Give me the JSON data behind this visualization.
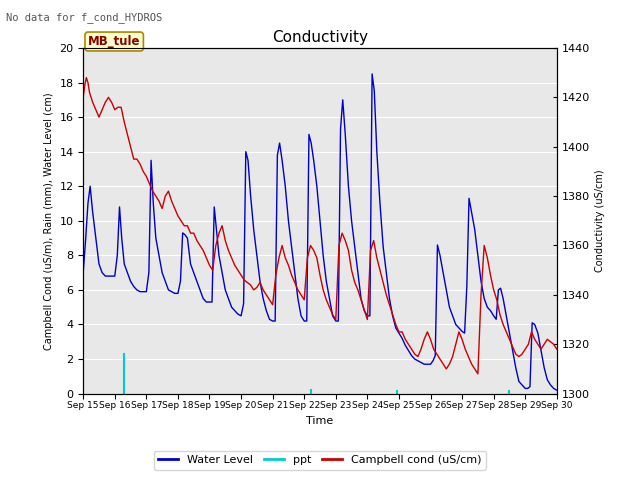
{
  "title": "Conductivity",
  "no_data_text": "No data for f_cond_HYDROS",
  "station_label": "MB_tule",
  "xlabel": "Time",
  "ylabel_left": "Campbell Cond (uS/m), Rain (mm), Water Level (cm)",
  "ylabel_right": "Conductivity (uS/cm)",
  "ylim_left": [
    0,
    20
  ],
  "ylim_right": [
    1300,
    1440
  ],
  "background_color": "#e8e8e8",
  "fig_color": "#ffffff",
  "x_start": 15,
  "x_end": 30,
  "x_ticks": [
    15,
    16,
    17,
    18,
    19,
    20,
    21,
    22,
    23,
    24,
    25,
    26,
    27,
    28,
    29,
    30
  ],
  "x_tick_labels": [
    "Sep 15",
    "Sep 16",
    "Sep 17",
    "Sep 18",
    "Sep 19",
    "Sep 20",
    "Sep 21",
    "Sep 22",
    "Sep 23",
    "Sep 24",
    "Sep 25",
    "Sep 26",
    "Sep 27",
    "Sep 28",
    "Sep 29",
    "Sep 30"
  ],
  "water_level_color": "#0000cc",
  "ppt_color": "#00cccc",
  "campbell_color": "#cc0000",
  "water_level": {
    "x": [
      15.0,
      15.08,
      15.15,
      15.22,
      15.3,
      15.4,
      15.5,
      15.6,
      15.7,
      15.8,
      15.9,
      16.0,
      16.08,
      16.15,
      16.22,
      16.3,
      16.4,
      16.5,
      16.6,
      16.7,
      16.8,
      16.9,
      17.0,
      17.08,
      17.15,
      17.22,
      17.3,
      17.4,
      17.5,
      17.6,
      17.7,
      17.8,
      17.9,
      18.0,
      18.08,
      18.15,
      18.22,
      18.3,
      18.4,
      18.5,
      18.6,
      18.7,
      18.8,
      18.9,
      19.0,
      19.08,
      19.15,
      19.22,
      19.3,
      19.4,
      19.5,
      19.6,
      19.7,
      19.8,
      19.9,
      20.0,
      20.08,
      20.15,
      20.22,
      20.3,
      20.4,
      20.5,
      20.6,
      20.7,
      20.8,
      20.9,
      21.0,
      21.08,
      21.15,
      21.22,
      21.3,
      21.4,
      21.5,
      21.6,
      21.7,
      21.8,
      21.9,
      22.0,
      22.08,
      22.15,
      22.22,
      22.3,
      22.4,
      22.5,
      22.6,
      22.7,
      22.8,
      22.9,
      23.0,
      23.08,
      23.15,
      23.22,
      23.3,
      23.4,
      23.5,
      23.6,
      23.7,
      23.8,
      23.9,
      24.0,
      24.08,
      24.15,
      24.22,
      24.3,
      24.4,
      24.5,
      24.6,
      24.7,
      24.8,
      24.9,
      25.0,
      25.1,
      25.2,
      25.3,
      25.4,
      25.5,
      25.6,
      25.7,
      25.8,
      25.9,
      26.0,
      26.08,
      26.15,
      26.22,
      26.3,
      26.4,
      26.5,
      26.6,
      26.7,
      26.8,
      26.9,
      27.0,
      27.08,
      27.15,
      27.22,
      27.3,
      27.4,
      27.5,
      27.6,
      27.7,
      27.8,
      27.9,
      28.0,
      28.08,
      28.15,
      28.22,
      28.3,
      28.4,
      28.5,
      28.6,
      28.7,
      28.8,
      28.9,
      29.0,
      29.08,
      29.15,
      29.22,
      29.3,
      29.4,
      29.5,
      29.6,
      29.7,
      29.8,
      29.9,
      30.0
    ],
    "y": [
      7.0,
      9.0,
      11.0,
      12.0,
      10.5,
      9.0,
      7.5,
      7.0,
      6.8,
      6.8,
      6.8,
      6.8,
      8.0,
      10.8,
      9.0,
      7.5,
      7.0,
      6.5,
      6.2,
      6.0,
      5.9,
      5.9,
      5.9,
      7.0,
      13.5,
      11.0,
      9.0,
      8.0,
      7.0,
      6.5,
      6.0,
      5.9,
      5.8,
      5.8,
      6.5,
      9.3,
      9.2,
      9.0,
      7.5,
      7.0,
      6.5,
      6.0,
      5.5,
      5.3,
      5.3,
      5.3,
      10.8,
      9.5,
      8.0,
      7.0,
      6.0,
      5.5,
      5.0,
      4.8,
      4.6,
      4.5,
      5.2,
      14.0,
      13.5,
      11.5,
      9.5,
      8.0,
      6.5,
      5.5,
      4.8,
      4.3,
      4.2,
      4.2,
      13.8,
      14.5,
      13.5,
      12.0,
      10.0,
      8.5,
      7.0,
      5.5,
      4.5,
      4.2,
      4.2,
      15.0,
      14.5,
      13.5,
      12.0,
      10.0,
      8.0,
      6.5,
      5.5,
      4.5,
      4.2,
      4.2,
      15.3,
      17.0,
      15.0,
      12.0,
      10.0,
      8.5,
      7.0,
      5.5,
      4.8,
      4.5,
      4.5,
      18.5,
      17.5,
      14.0,
      11.0,
      8.5,
      7.0,
      5.5,
      4.5,
      3.8,
      3.5,
      3.2,
      2.8,
      2.5,
      2.2,
      2.0,
      1.9,
      1.8,
      1.7,
      1.7,
      1.7,
      1.9,
      2.2,
      8.6,
      8.0,
      7.0,
      6.0,
      5.0,
      4.5,
      4.0,
      3.8,
      3.6,
      3.5,
      6.2,
      11.3,
      10.5,
      9.5,
      8.0,
      6.5,
      5.5,
      5.0,
      4.8,
      4.5,
      4.3,
      6.0,
      6.1,
      5.5,
      4.5,
      3.5,
      2.5,
      1.5,
      0.7,
      0.5,
      0.3,
      0.3,
      0.4,
      4.1,
      4.0,
      3.5,
      2.5,
      1.5,
      0.8,
      0.5,
      0.3,
      0.2
    ]
  },
  "ppt": {
    "x": [
      16.3,
      22.2,
      24.95,
      28.5
    ],
    "y": [
      2.3,
      0.2,
      0.15,
      0.15
    ]
  },
  "campbell": {
    "x": [
      15.0,
      15.05,
      15.1,
      15.15,
      15.2,
      15.3,
      15.4,
      15.5,
      15.6,
      15.7,
      15.8,
      15.9,
      16.0,
      16.1,
      16.2,
      16.3,
      16.4,
      16.5,
      16.6,
      16.7,
      16.8,
      16.9,
      17.0,
      17.1,
      17.2,
      17.3,
      17.4,
      17.5,
      17.6,
      17.7,
      17.8,
      17.9,
      18.0,
      18.1,
      18.2,
      18.3,
      18.4,
      18.5,
      18.6,
      18.7,
      18.8,
      18.9,
      19.0,
      19.1,
      19.2,
      19.3,
      19.4,
      19.5,
      19.6,
      19.7,
      19.8,
      19.9,
      20.0,
      20.1,
      20.2,
      20.3,
      20.4,
      20.5,
      20.6,
      20.7,
      20.8,
      20.9,
      21.0,
      21.1,
      21.2,
      21.3,
      21.4,
      21.5,
      21.6,
      21.7,
      21.8,
      21.9,
      22.0,
      22.1,
      22.2,
      22.3,
      22.4,
      22.5,
      22.6,
      22.7,
      22.8,
      22.9,
      23.0,
      23.1,
      23.2,
      23.3,
      23.4,
      23.5,
      23.6,
      23.7,
      23.8,
      23.9,
      24.0,
      24.1,
      24.2,
      24.3,
      24.4,
      24.5,
      24.6,
      24.7,
      24.8,
      24.9,
      25.0,
      25.1,
      25.2,
      25.3,
      25.4,
      25.5,
      25.6,
      25.7,
      25.8,
      25.9,
      26.0,
      26.1,
      26.2,
      26.3,
      26.4,
      26.5,
      26.6,
      26.7,
      26.8,
      26.9,
      27.0,
      27.1,
      27.2,
      27.3,
      27.4,
      27.5,
      27.6,
      27.7,
      27.8,
      27.9,
      28.0,
      28.1,
      28.2,
      28.3,
      28.4,
      28.5,
      28.6,
      28.7,
      28.8,
      28.9,
      29.0,
      29.1,
      29.2,
      29.3,
      29.4,
      29.5,
      29.6,
      29.7,
      29.8,
      29.9,
      30.0
    ],
    "y": [
      1420,
      1425,
      1428,
      1426,
      1422,
      1418,
      1415,
      1412,
      1415,
      1418,
      1420,
      1418,
      1415,
      1416,
      1416,
      1410,
      1405,
      1400,
      1395,
      1395,
      1393,
      1390,
      1388,
      1385,
      1382,
      1380,
      1378,
      1375,
      1380,
      1382,
      1378,
      1375,
      1372,
      1370,
      1368,
      1368,
      1365,
      1365,
      1362,
      1360,
      1358,
      1355,
      1352,
      1350,
      1360,
      1365,
      1368,
      1362,
      1358,
      1355,
      1352,
      1350,
      1348,
      1346,
      1345,
      1344,
      1342,
      1343,
      1345,
      1342,
      1340,
      1338,
      1336,
      1348,
      1355,
      1360,
      1355,
      1352,
      1348,
      1345,
      1342,
      1340,
      1338,
      1355,
      1360,
      1358,
      1355,
      1348,
      1342,
      1338,
      1335,
      1332,
      1330,
      1360,
      1365,
      1362,
      1358,
      1350,
      1345,
      1342,
      1338,
      1334,
      1330,
      1358,
      1362,
      1355,
      1350,
      1345,
      1340,
      1336,
      1332,
      1328,
      1325,
      1325,
      1322,
      1320,
      1318,
      1316,
      1315,
      1318,
      1322,
      1325,
      1322,
      1318,
      1316,
      1314,
      1312,
      1310,
      1312,
      1315,
      1320,
      1325,
      1322,
      1318,
      1315,
      1312,
      1310,
      1308,
      1340,
      1360,
      1355,
      1348,
      1342,
      1338,
      1332,
      1328,
      1325,
      1322,
      1319,
      1316,
      1315,
      1316,
      1318,
      1320,
      1325,
      1322,
      1320,
      1318,
      1320,
      1322,
      1321,
      1320,
      1318
    ]
  },
  "left_yticks": [
    0,
    2,
    4,
    6,
    8,
    10,
    12,
    14,
    16,
    18,
    20
  ],
  "right_yticks": [
    1300,
    1320,
    1340,
    1360,
    1380,
    1400,
    1420,
    1440
  ]
}
